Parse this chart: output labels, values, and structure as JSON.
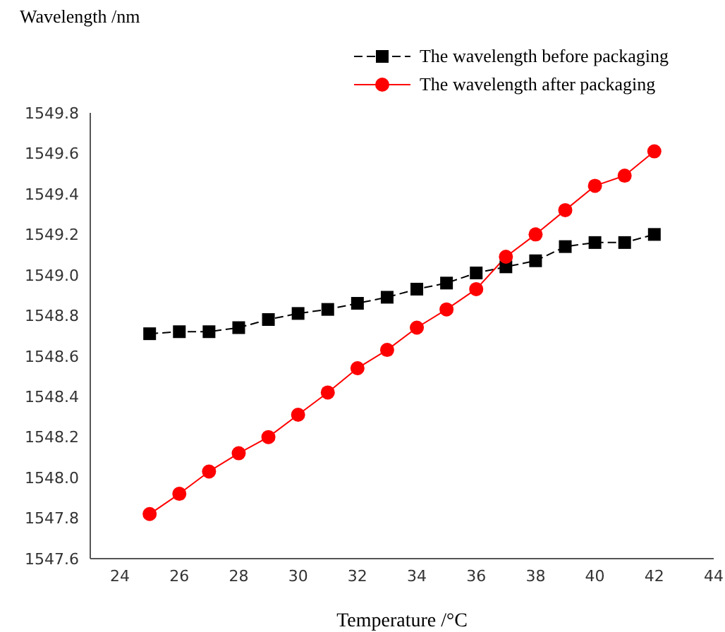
{
  "chart_data": {
    "type": "line",
    "xlabel": "Temperature /°C",
    "ylabel": "Wavelength /nm",
    "x": [
      25,
      26,
      27,
      28,
      29,
      30,
      31,
      32,
      33,
      34,
      35,
      36,
      37,
      38,
      39,
      40,
      41,
      42
    ],
    "series": [
      {
        "name": "The wavelength before packaging",
        "color": "#000000",
        "marker": "square",
        "line_style": "dashed",
        "values": [
          1548.71,
          1548.72,
          1548.72,
          1548.74,
          1548.78,
          1548.81,
          1548.83,
          1548.86,
          1548.89,
          1548.93,
          1548.96,
          1549.01,
          1549.04,
          1549.07,
          1549.14,
          1549.16,
          1549.16,
          1549.2
        ]
      },
      {
        "name": "The wavelength after packaging",
        "color": "#ff0000",
        "marker": "circle",
        "line_style": "solid",
        "values": [
          1547.82,
          1547.92,
          1548.03,
          1548.12,
          1548.2,
          1548.31,
          1548.42,
          1548.54,
          1548.63,
          1548.74,
          1548.83,
          1548.93,
          1549.09,
          1549.2,
          1549.32,
          1549.44,
          1549.49,
          1549.61
        ]
      }
    ],
    "xlim": [
      23,
      44
    ],
    "xticks": [
      24,
      26,
      28,
      30,
      32,
      34,
      36,
      38,
      40,
      42,
      44
    ],
    "ylim": [
      1547.6,
      1549.8
    ],
    "yticks": [
      1547.6,
      1547.8,
      {
        "value": 1548,
        "label": "1548.0"
      },
      1548.2,
      1548.4,
      1548.6,
      1548.8,
      {
        "value": 1549,
        "label": "1549.0"
      },
      1549.2,
      1549.4,
      1549.6,
      1549.8
    ],
    "grid": false,
    "legend": "top right"
  }
}
